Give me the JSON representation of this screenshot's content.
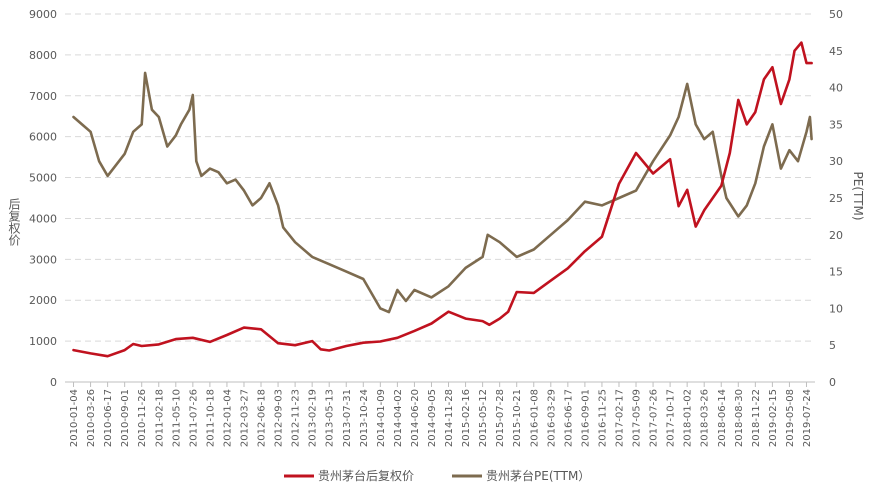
{
  "chart_data": {
    "type": "line",
    "title": "",
    "grid": "horizontal dashed gridlines",
    "legend_position": "bottom-center",
    "x_tick_labels": [
      "2010-01-04",
      "2010-03-26",
      "2010-06-17",
      "2010-09-01",
      "2010-11-26",
      "2011-02-18",
      "2011-05-10",
      "2011-07-26",
      "2011-10-18",
      "2012-01-04",
      "2012-03-27",
      "2012-06-18",
      "2012-09-03",
      "2012-11-23",
      "2013-02-19",
      "2013-05-13",
      "2013-07-31",
      "2013-10-24",
      "2014-01-09",
      "2014-04-02",
      "2014-06-20",
      "2014-09-05",
      "2014-11-28",
      "2015-02-16",
      "2015-05-12",
      "2015-07-28",
      "2015-10-21",
      "2016-01-08",
      "2016-03-29",
      "2016-06-17",
      "2016-09-01",
      "2016-11-25",
      "2017-02-17",
      "2017-05-09",
      "2017-07-26",
      "2017-10-17",
      "2018-01-02",
      "2018-03-26",
      "2018-06-14",
      "2018-08-30",
      "2018-11-22",
      "2019-02-15",
      "2019-05-08",
      "2019-07-24"
    ],
    "y_left": {
      "label": "后复权价",
      "min": 0,
      "max": 9000,
      "step": 1000,
      "ticks": [
        "0",
        "1000",
        "2000",
        "3000",
        "4000",
        "5000",
        "6000",
        "7000",
        "8000",
        "9000"
      ]
    },
    "y_right": {
      "label": "PE(TTM)",
      "min": 0,
      "max": 50,
      "step": 5,
      "ticks": [
        "0",
        "5",
        "10",
        "15",
        "20",
        "25",
        "30",
        "35",
        "40",
        "45",
        "50"
      ]
    },
    "series": [
      {
        "name": "贵州茅台后复权价",
        "axis": "left",
        "color": "#C0121F",
        "x": [
          0,
          1,
          2,
          3,
          3.5,
          4,
          5,
          6,
          7,
          8,
          9,
          10,
          11,
          12,
          13,
          14,
          14.5,
          15,
          16,
          17,
          18,
          19,
          20,
          21,
          22,
          23,
          24,
          24.4,
          25,
          25.5,
          26,
          27,
          28,
          29,
          30,
          31,
          32,
          33,
          34,
          35,
          35.5,
          36,
          36.5,
          37,
          38,
          38.5,
          39,
          39.5,
          40,
          40.5,
          41,
          41.5,
          42,
          42.3,
          42.7,
          43,
          43.3
        ],
        "values": [
          780,
          700,
          630,
          780,
          930,
          880,
          920,
          1050,
          1080,
          980,
          1150,
          1330,
          1290,
          950,
          900,
          1000,
          800,
          770,
          880,
          960,
          990,
          1080,
          1250,
          1430,
          1720,
          1550,
          1490,
          1400,
          1550,
          1720,
          2200,
          2180,
          2480,
          2780,
          3200,
          3550,
          4850,
          5600,
          5100,
          5450,
          4300,
          4700,
          3800,
          4200,
          4800,
          5600,
          6900,
          6300,
          6600,
          7400,
          7700,
          6800,
          7400,
          8100,
          8300,
          7800,
          7800
        ]
      },
      {
        "name": "贵州茅台PE(TTM）",
        "axis": "right",
        "color": "#7D6B4F",
        "x": [
          0,
          0.5,
          1,
          1.5,
          2,
          2.5,
          3,
          3.5,
          4,
          4.2,
          4.6,
          5,
          5.5,
          6,
          6.3,
          6.8,
          7,
          7.2,
          7.5,
          8,
          8.5,
          9,
          9.5,
          10,
          10.5,
          11,
          11.5,
          12,
          12.3,
          13,
          14,
          15,
          16,
          17,
          18,
          18.5,
          19,
          19.5,
          20,
          21,
          22,
          23,
          24,
          24.3,
          25,
          26,
          27,
          28,
          29,
          30,
          31,
          32,
          33,
          34,
          35,
          35.5,
          36,
          36.5,
          37,
          37.5,
          38,
          38.3,
          39,
          39.5,
          40,
          40.5,
          41,
          41.5,
          42,
          42.5,
          43,
          43.2,
          43.3
        ],
        "values": [
          36,
          35,
          34,
          30,
          28,
          29.5,
          31,
          34,
          35,
          42,
          37,
          36,
          32,
          33.5,
          35,
          37,
          39,
          30,
          28,
          29,
          28.5,
          27,
          27.5,
          26,
          24,
          25,
          27,
          24,
          21,
          19,
          17,
          16,
          15,
          14,
          10,
          9.5,
          12.5,
          11,
          12.5,
          11.5,
          13,
          15.5,
          17,
          20,
          19,
          17,
          18,
          20,
          22,
          24.5,
          24,
          25,
          26,
          30,
          33.5,
          36,
          40.5,
          35,
          33,
          34,
          28,
          25,
          22.5,
          24,
          27,
          32,
          35,
          29,
          31.5,
          30,
          34,
          36,
          33
        ]
      }
    ]
  }
}
